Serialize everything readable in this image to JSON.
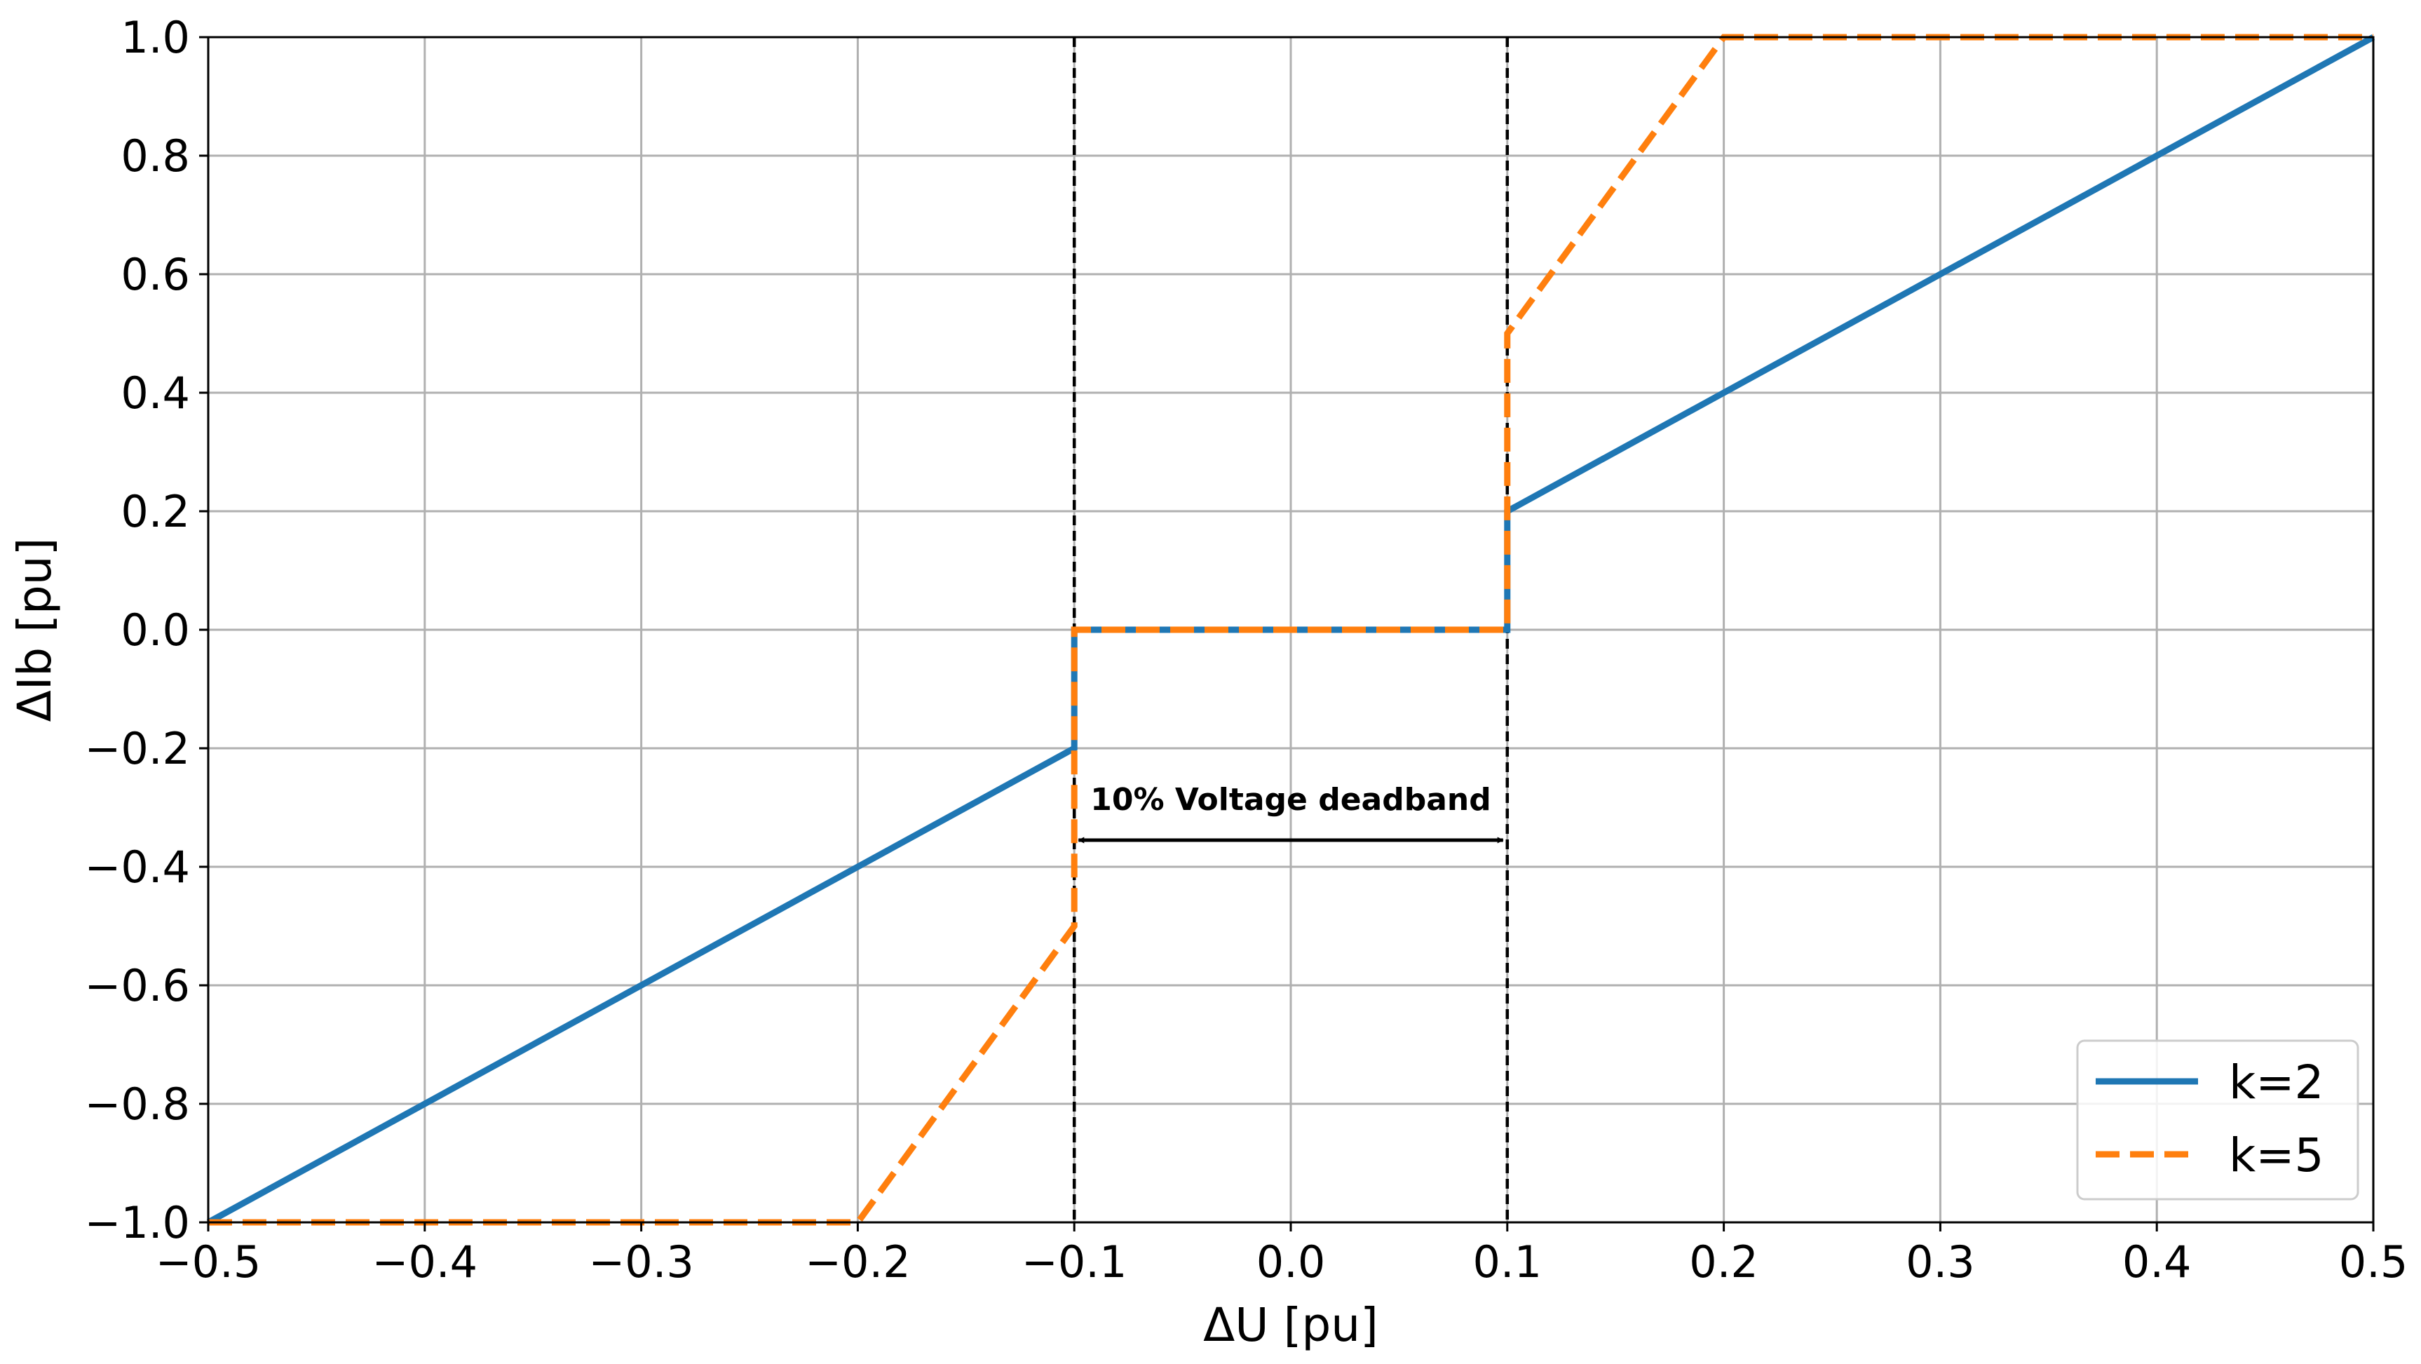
{
  "chart_data": {
    "type": "line",
    "title": "",
    "xlabel": "ΔU [pu]",
    "ylabel": "ΔIb [pu]",
    "xlim": [
      -0.5,
      0.5
    ],
    "ylim": [
      -1.0,
      1.0
    ],
    "grid": true,
    "legend_position": "bottom-right",
    "x_ticks": [
      -0.5,
      -0.4,
      -0.3,
      -0.2,
      -0.1,
      0.0,
      0.1,
      0.2,
      0.3,
      0.4,
      0.5
    ],
    "x_tick_labels": [
      "−0.5",
      "−0.4",
      "−0.3",
      "−0.2",
      "−0.1",
      "0.0",
      "0.1",
      "0.2",
      "0.3",
      "0.4",
      "0.5"
    ],
    "y_ticks": [
      -1.0,
      -0.8,
      -0.6,
      -0.4,
      -0.2,
      0.0,
      0.2,
      0.4,
      0.6,
      0.8,
      1.0
    ],
    "y_tick_labels": [
      "−1.0",
      "−0.8",
      "−0.6",
      "−0.4",
      "−0.2",
      "0.0",
      "0.2",
      "0.4",
      "0.6",
      "0.8",
      "1.0"
    ],
    "series": [
      {
        "name": "k=2",
        "color": "#1f77b4",
        "style": "solid",
        "x": [
          -0.5,
          -0.1,
          -0.1,
          0.1,
          0.1,
          0.5
        ],
        "y": [
          -1.0,
          -0.2,
          0.0,
          0.0,
          0.2,
          1.0
        ]
      },
      {
        "name": "k=5",
        "color": "#ff7f0e",
        "style": "dashed",
        "x": [
          -0.5,
          -0.2,
          -0.1,
          -0.1,
          0.1,
          0.1,
          0.2,
          0.5
        ],
        "y": [
          -1.0,
          -1.0,
          -0.5,
          0.0,
          0.0,
          0.5,
          1.0,
          1.0
        ]
      }
    ],
    "vertical_lines": [
      {
        "x": -0.1,
        "style": "dashed",
        "color": "#000000"
      },
      {
        "x": 0.1,
        "style": "dashed",
        "color": "#000000"
      }
    ],
    "annotations": [
      {
        "text": "10% Voltage deadband",
        "arrow": {
          "x_start": -0.1,
          "x_end": 0.1,
          "y": -0.355
        },
        "text_position": {
          "x": 0.0,
          "y": -0.285
        }
      }
    ]
  }
}
